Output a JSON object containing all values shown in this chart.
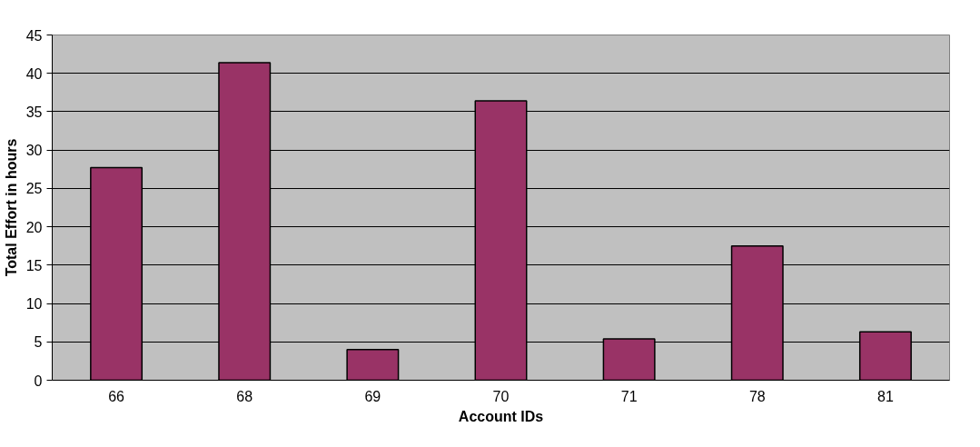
{
  "chart_data": {
    "type": "bar",
    "xlabel": "Account IDs",
    "ylabel": "Total Effort in hours",
    "categories": [
      "66",
      "68",
      "69",
      "70",
      "71",
      "78",
      "81"
    ],
    "values": [
      27.7,
      41.4,
      4.0,
      36.4,
      5.4,
      17.5,
      6.3
    ],
    "color": "#993366",
    "ylim": [
      0,
      45
    ],
    "yticks": [
      0,
      5,
      10,
      15,
      20,
      25,
      30,
      35,
      40,
      45
    ],
    "grid": "y"
  }
}
